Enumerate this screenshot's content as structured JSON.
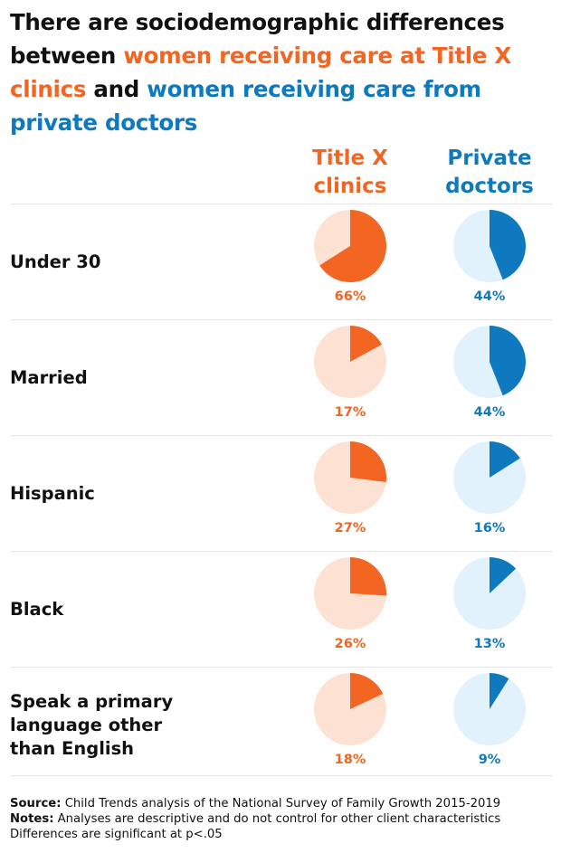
{
  "title": {
    "part1": "There are sociodemographic differences between ",
    "part2": "women receiving care at Title X clinics",
    "part3": " and ",
    "part4": "women receiving care from private doctors"
  },
  "columns": {
    "title_x": "Title X clinics",
    "private": "Private doctors"
  },
  "colors": {
    "title_x": "#f26522",
    "title_x_light": "#fde1d3",
    "private": "#0f79bf",
    "private_light": "#e1f2fc"
  },
  "chart_data": {
    "type": "pie",
    "title": "There are sociodemographic differences between women receiving care at Title X clinics and women receiving care from private doctors",
    "categories": [
      "Under 30",
      "Married",
      "Hispanic",
      "Black",
      "Speak a primary language other than English"
    ],
    "series": [
      {
        "name": "Title X clinics",
        "values": [
          66,
          17,
          27,
          26,
          18
        ]
      },
      {
        "name": "Private doctors",
        "values": [
          44,
          44,
          16,
          13,
          9
        ]
      }
    ],
    "unit": "%"
  },
  "footer": {
    "source_label": "Source:",
    "source_text": " Child Trends analysis of the National Survey of Family Growth 2015-2019",
    "notes_label": "Notes:",
    "notes_text": " Analyses are descriptive and do not control for other client characteristics",
    "significance": "Differences are significant at p<.05"
  }
}
